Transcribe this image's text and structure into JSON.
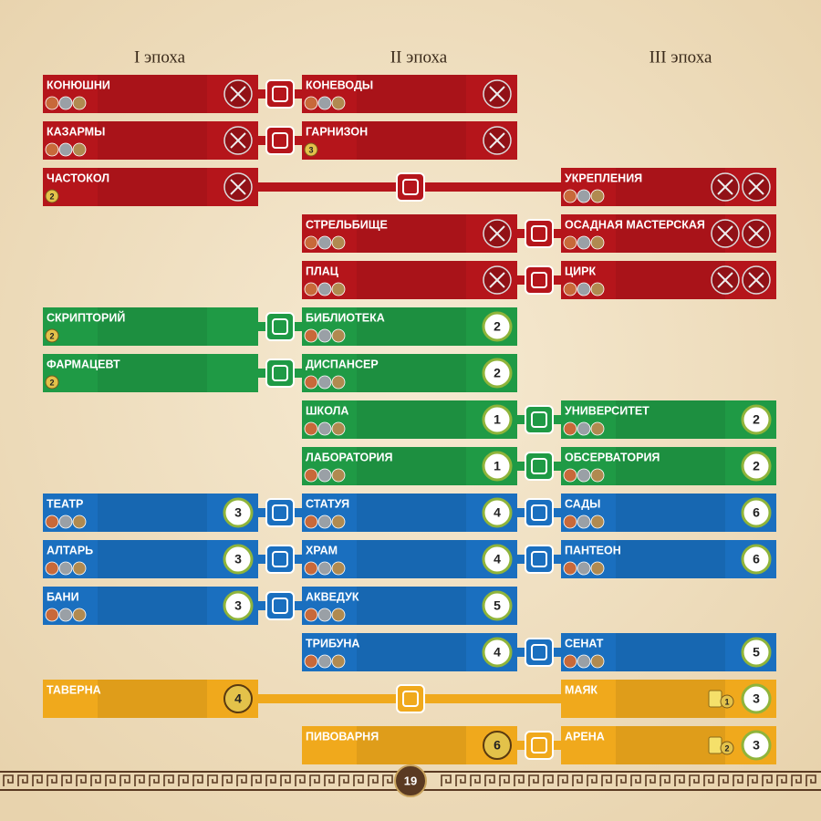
{
  "header": {
    "eras": [
      "I эпоха",
      "II эпоха",
      "III эпоха"
    ]
  },
  "rows": [
    {
      "color": "#b5151b",
      "i": {
        "name": "КОНЮШНИ"
      },
      "ii": {
        "name": "КОНЕВОДЫ"
      }
    },
    {
      "color": "#b5151b",
      "i": {
        "name": "КАЗАРМЫ"
      },
      "ii": {
        "name": "ГАРНИЗОН",
        "coin": 3
      }
    },
    {
      "color": "#b5151b",
      "i": {
        "name": "ЧАСТОКОЛ",
        "coin": 2
      },
      "iii": {
        "name": "УКРЕПЛЕНИЯ"
      }
    },
    {
      "color": "#b5151b",
      "ii": {
        "name": "СТРЕЛЬБИЩЕ"
      },
      "iii": {
        "name": "ОСАДНАЯ МАСТЕРСКАЯ"
      }
    },
    {
      "color": "#b5151b",
      "ii": {
        "name": "ПЛАЦ"
      },
      "iii": {
        "name": "ЦИРК"
      }
    },
    {
      "color": "#1f9a45",
      "i": {
        "name": "СКРИПТОРИЙ",
        "coin": 2
      },
      "ii": {
        "name": "БИБЛИОТЕКА",
        "points": 2
      }
    },
    {
      "color": "#1f9a45",
      "i": {
        "name": "ФАРМАЦЕВТ",
        "coin": 2
      },
      "ii": {
        "name": "ДИСПАНСЕР",
        "points": 2
      }
    },
    {
      "color": "#1f9a45",
      "ii": {
        "name": "ШКОЛА",
        "points": 1
      },
      "iii": {
        "name": "УНИВЕРСИТЕТ",
        "points": 2
      }
    },
    {
      "color": "#1f9a45",
      "ii": {
        "name": "ЛАБОРАТОРИЯ",
        "points": 1
      },
      "iii": {
        "name": "ОБСЕРВАТОРИЯ",
        "points": 2
      }
    },
    {
      "color": "#1a6fbf",
      "i": {
        "name": "ТЕАТР",
        "points": 3
      },
      "ii": {
        "name": "СТАТУЯ",
        "points": 4
      },
      "iii": {
        "name": "САДЫ",
        "points": 6
      }
    },
    {
      "color": "#1a6fbf",
      "i": {
        "name": "АЛТАРЬ",
        "points": 3
      },
      "ii": {
        "name": "ХРАМ",
        "points": 4
      },
      "iii": {
        "name": "ПАНТЕОН",
        "points": 6
      }
    },
    {
      "color": "#1a6fbf",
      "i": {
        "name": "БАНИ",
        "points": 3
      },
      "ii": {
        "name": "АКВЕДУК",
        "points": 5
      }
    },
    {
      "color": "#1a6fbf",
      "ii": {
        "name": "ТРИБУНА",
        "points": 4
      },
      "iii": {
        "name": "СЕНАТ",
        "points": 5
      }
    },
    {
      "color": "#f0a91c",
      "i": {
        "name": "ТАВЕРНА",
        "coin": 4
      },
      "iii": {
        "name": "МАЯК",
        "bonus": 1,
        "points": 3
      }
    },
    {
      "color": "#f0a91c",
      "ii": {
        "name": "ПИВОВАРНЯ",
        "coin": 6
      },
      "iii": {
        "name": "АРЕНА",
        "bonus": 2,
        "points": 3
      }
    }
  ],
  "footer": {
    "page": 19
  }
}
